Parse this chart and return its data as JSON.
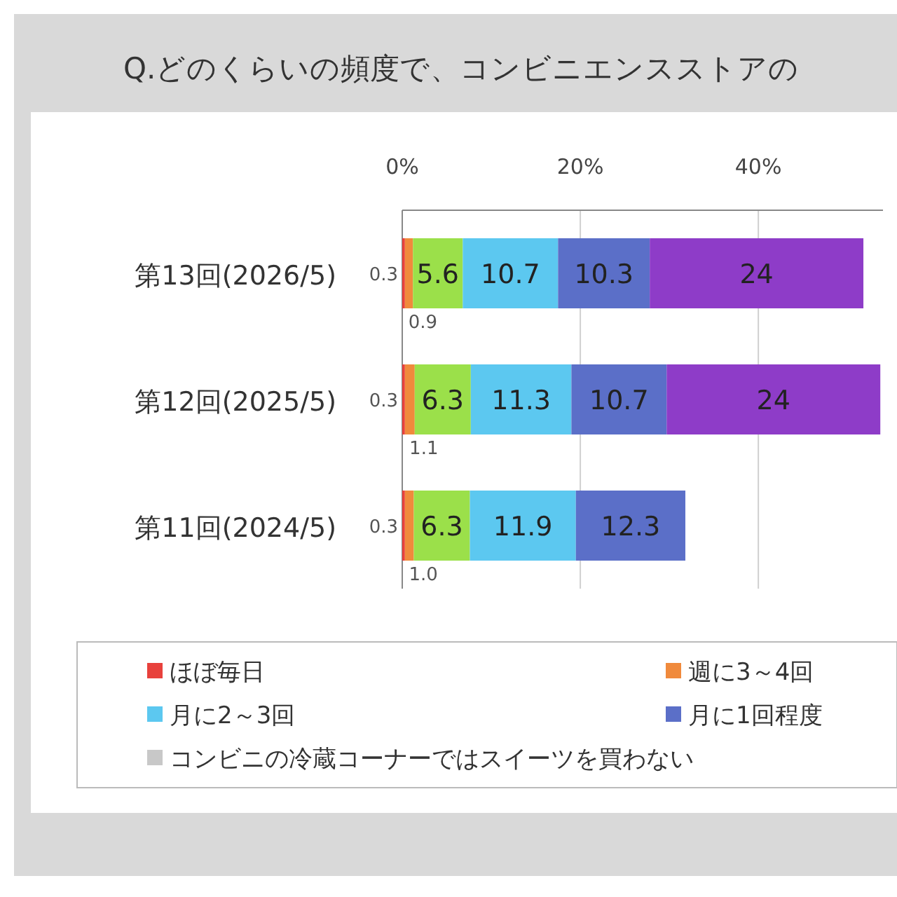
{
  "chart_data": {
    "type": "bar",
    "orientation": "horizontal",
    "stacked": true,
    "title": "Q.どのくらいの頻度で、コンビニエンスストアの",
    "categories": [
      "第13回(2026/5)",
      "第12回(2025/5)",
      "第11回(2024/5)"
    ],
    "series": [
      {
        "name": "ほぼ毎日",
        "color": "#e8413c",
        "values": [
          0.3,
          0.3,
          0.3
        ]
      },
      {
        "name": "週に3～4回",
        "color": "#f08a3c",
        "values": [
          0.9,
          1.1,
          1.0
        ],
        "value_labels": [
          "0.9",
          "1.1",
          "1.0"
        ]
      },
      {
        "color": "#9be04a",
        "values": [
          5.6,
          6.3,
          6.3
        ]
      },
      {
        "name": "月に2～3回",
        "color": "#5cc8f0",
        "values": [
          10.7,
          11.3,
          11.9
        ]
      },
      {
        "name": "月に1回程度",
        "color": "#5b6fc8",
        "values": [
          10.3,
          10.7,
          12.3
        ]
      },
      {
        "color": "#8e3cc8",
        "values": [
          24,
          24,
          null
        ]
      },
      {
        "name": "コンビニの冷蔵コーナーではスイーツを買わない",
        "color": "#c8c8c8",
        "values": [
          null,
          null,
          null
        ]
      }
    ],
    "xlim": [
      0,
      54
    ],
    "xticks": [
      {
        "value": 0,
        "label": "0%"
      },
      {
        "value": 20,
        "label": "20%"
      },
      {
        "value": 40,
        "label": "40%"
      }
    ],
    "grid": "x",
    "legend": "bottom",
    "data_labels": true
  }
}
